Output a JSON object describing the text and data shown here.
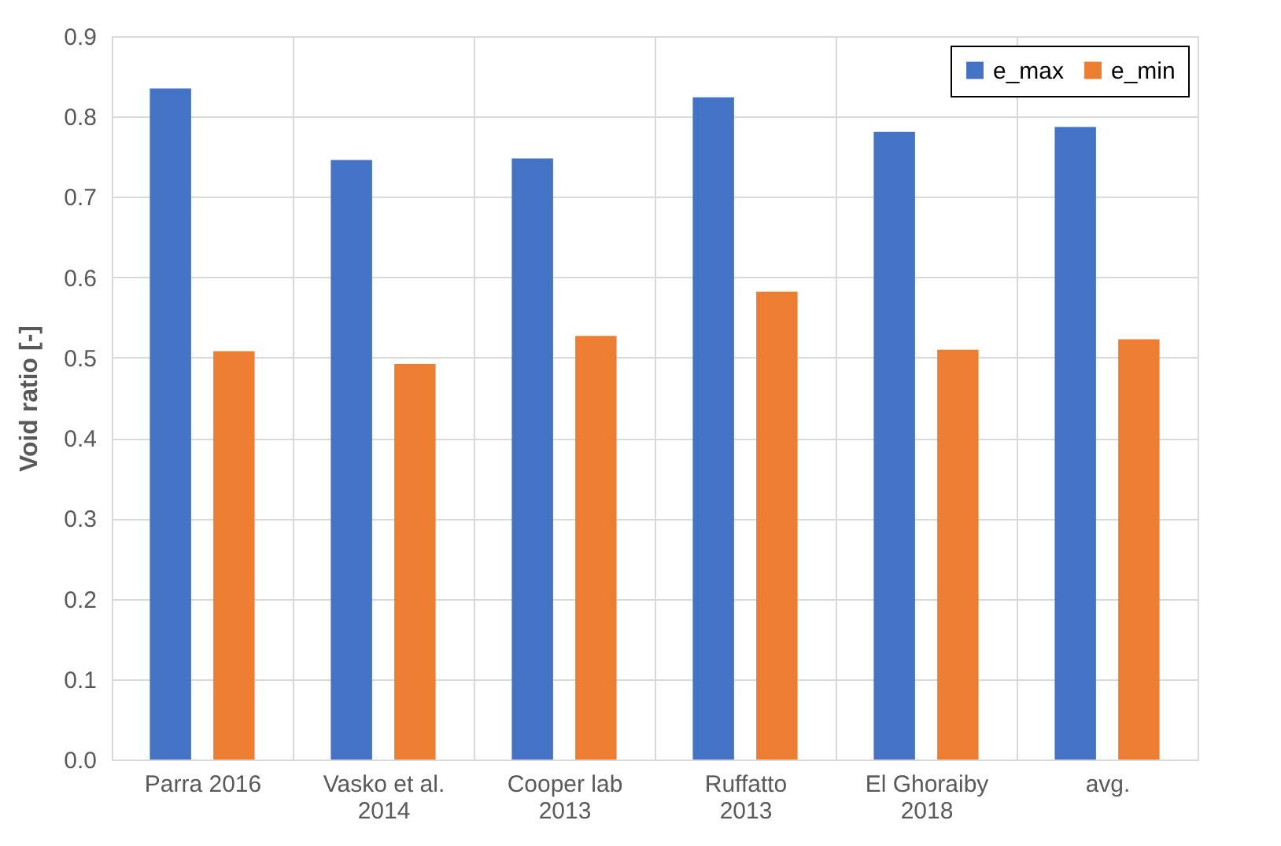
{
  "chart_data": {
    "type": "bar",
    "ylabel": "Void ratio [-]",
    "categories": [
      "Parra 2016",
      "Vasko et al.\n2014",
      "Cooper lab\n2013",
      "Ruffatto\n2013",
      "El Ghoraiby\n2018",
      "avg."
    ],
    "series": [
      {
        "name": "e_max",
        "color": "#4472c4",
        "values": [
          0.835,
          0.746,
          0.748,
          0.824,
          0.781,
          0.787
        ]
      },
      {
        "name": "e_min",
        "color": "#ed7d31",
        "values": [
          0.508,
          0.492,
          0.527,
          0.582,
          0.51,
          0.523
        ]
      }
    ],
    "ylim": [
      0,
      0.9
    ],
    "yticks": [
      {
        "value": 0,
        "label": "0.0"
      },
      {
        "value": 0.1,
        "label": "0.1"
      },
      {
        "value": 0.2,
        "label": "0.2"
      },
      {
        "value": 0.3,
        "label": "0.3"
      },
      {
        "value": 0.4,
        "label": "0.4"
      },
      {
        "value": 0.5,
        "label": "0.5"
      },
      {
        "value": 0.6,
        "label": "0.6"
      },
      {
        "value": 0.7,
        "label": "0.7"
      },
      {
        "value": 0.8,
        "label": "0.8"
      },
      {
        "value": 0.9,
        "label": "0.9"
      }
    ],
    "grid": true,
    "legend": "top right"
  }
}
